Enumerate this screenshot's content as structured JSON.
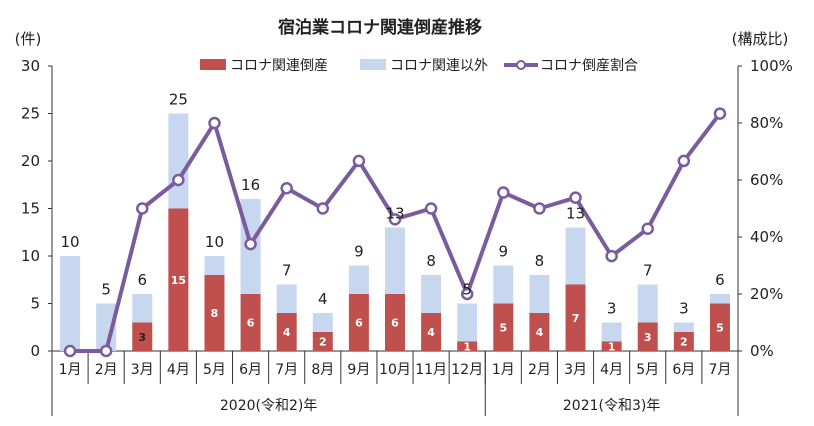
{
  "chart_data": {
    "type": "bar",
    "title": "宿泊業コロナ関連倒産推移",
    "ylabel_left": "(件)",
    "ylabel_right": "(構成比)",
    "ylim_left": [
      0,
      30
    ],
    "ylim_right": [
      0,
      100
    ],
    "yticks_left": [
      "0",
      "5",
      "10",
      "15",
      "20",
      "25",
      "30"
    ],
    "yticks_right": [
      "0%",
      "20%",
      "40%",
      "60%",
      "80%",
      "100%"
    ],
    "categories": [
      "1月",
      "2月",
      "3月",
      "4月",
      "5月",
      "6月",
      "7月",
      "8月",
      "9月",
      "10月",
      "11月",
      "12月",
      "1月",
      "2月",
      "3月",
      "4月",
      "5月",
      "6月",
      "7月"
    ],
    "year_groups": [
      {
        "label": "2020(令和2)年",
        "count": 12
      },
      {
        "label": "2021(令和3)年",
        "count": 7
      }
    ],
    "series": [
      {
        "name": "コロナ関連倒産",
        "color": "#c0504d",
        "axis": "left",
        "values": [
          0,
          0,
          3,
          15,
          8,
          6,
          4,
          2,
          6,
          6,
          4,
          1,
          5,
          4,
          7,
          1,
          3,
          2,
          5
        ]
      },
      {
        "name": "コロナ関連以外",
        "color": "#c6d7ef",
        "axis": "left",
        "values": [
          10,
          5,
          3,
          10,
          2,
          10,
          3,
          2,
          3,
          7,
          4,
          4,
          4,
          4,
          6,
          2,
          4,
          1,
          1
        ]
      },
      {
        "name": "コロナ倒産割合",
        "color": "#7a5c9e",
        "axis": "right",
        "values": [
          0,
          0,
          50,
          60,
          80,
          37.5,
          57.1,
          50,
          66.7,
          46.2,
          50,
          20,
          55.6,
          50,
          53.8,
          33.3,
          42.9,
          66.7,
          83.3
        ]
      }
    ],
    "totals": [
      10,
      5,
      6,
      25,
      10,
      16,
      7,
      4,
      9,
      13,
      8,
      5,
      9,
      8,
      13,
      3,
      7,
      3,
      6
    ],
    "legend_position": "top",
    "grid": false
  }
}
